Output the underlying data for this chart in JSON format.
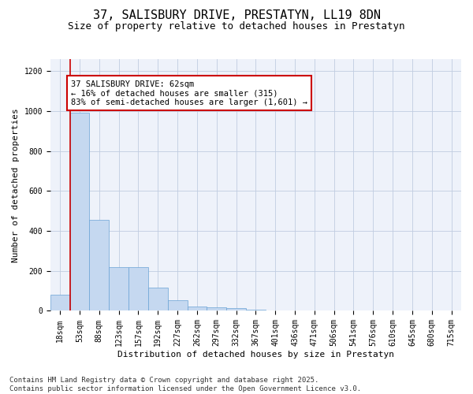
{
  "title_line1": "37, SALISBURY DRIVE, PRESTATYN, LL19 8DN",
  "title_line2": "Size of property relative to detached houses in Prestatyn",
  "xlabel": "Distribution of detached houses by size in Prestatyn",
  "ylabel": "Number of detached properties",
  "bin_labels": [
    "18sqm",
    "53sqm",
    "88sqm",
    "123sqm",
    "157sqm",
    "192sqm",
    "227sqm",
    "262sqm",
    "297sqm",
    "332sqm",
    "367sqm",
    "401sqm",
    "436sqm",
    "471sqm",
    "506sqm",
    "541sqm",
    "576sqm",
    "610sqm",
    "645sqm",
    "680sqm",
    "715sqm"
  ],
  "bar_values": [
    80,
    990,
    455,
    220,
    220,
    115,
    55,
    22,
    18,
    15,
    7,
    0,
    0,
    0,
    0,
    0,
    0,
    0,
    0,
    0,
    0
  ],
  "bar_color": "#c5d8f0",
  "bar_edge_color": "#6aa3d5",
  "vline_color": "#cc0000",
  "annotation_text": "37 SALISBURY DRIVE: 62sqm\n← 16% of detached houses are smaller (315)\n83% of semi-detached houses are larger (1,601) →",
  "annotation_box_color": "#cc0000",
  "ylim": [
    0,
    1260
  ],
  "yticks": [
    0,
    200,
    400,
    600,
    800,
    1000,
    1200
  ],
  "grid_color": "#c0cce0",
  "background_color": "#eef2fa",
  "footer_line1": "Contains HM Land Registry data © Crown copyright and database right 2025.",
  "footer_line2": "Contains public sector information licensed under the Open Government Licence v3.0.",
  "title_fontsize": 11,
  "subtitle_fontsize": 9,
  "axis_label_fontsize": 8,
  "tick_fontsize": 7,
  "annotation_fontsize": 7.5,
  "footer_fontsize": 6.5
}
